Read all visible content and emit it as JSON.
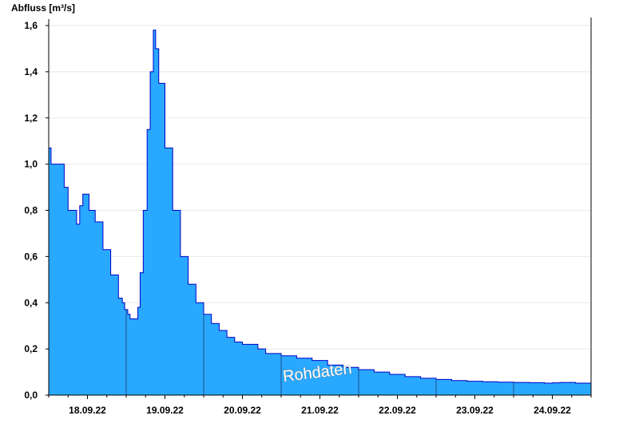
{
  "chart_data": {
    "type": "area",
    "title": "",
    "xlabel": "",
    "ylabel": "Abfluss [m³/s]",
    "watermark": "Rohdaten",
    "ylim": [
      0,
      1.6
    ],
    "yticks": [
      0.0,
      0.2,
      0.4,
      0.6,
      0.8,
      1.0,
      1.2,
      1.4,
      1.6
    ],
    "ytick_labels": [
      "0,0",
      "0,2",
      "0,4",
      "0,6",
      "0,8",
      "1,0",
      "1,2",
      "1,4",
      "1,6"
    ],
    "xlim_days": [
      0,
      7
    ],
    "x_unit": "days from 17.09.22 12:00",
    "xtick_labels": [
      "18.09.22",
      "19.09.22",
      "20.09.22",
      "21.09.22",
      "22.09.22",
      "23.09.22",
      "24.09.22"
    ],
    "grid": true,
    "colors": {
      "fill": "#29a8ff",
      "line": "#0000c8",
      "grid": "#e8e8e8",
      "axis": "#000000",
      "midnight": "#1a4f8a"
    },
    "series": [
      {
        "values": [
          [
            0.0,
            1.07
          ],
          [
            0.03,
            1.0
          ],
          [
            0.15,
            1.0
          ],
          [
            0.2,
            0.9
          ],
          [
            0.25,
            0.8
          ],
          [
            0.33,
            0.8
          ],
          [
            0.36,
            0.74
          ],
          [
            0.4,
            0.82
          ],
          [
            0.44,
            0.87
          ],
          [
            0.5,
            0.87
          ],
          [
            0.52,
            0.8
          ],
          [
            0.6,
            0.75
          ],
          [
            0.7,
            0.63
          ],
          [
            0.8,
            0.52
          ],
          [
            0.9,
            0.42
          ],
          [
            0.95,
            0.4
          ],
          [
            0.98,
            0.37
          ],
          [
            1.02,
            0.35
          ],
          [
            1.05,
            0.33
          ],
          [
            1.12,
            0.33
          ],
          [
            1.15,
            0.38
          ],
          [
            1.18,
            0.53
          ],
          [
            1.22,
            0.8
          ],
          [
            1.27,
            1.15
          ],
          [
            1.31,
            1.4
          ],
          [
            1.35,
            1.58
          ],
          [
            1.38,
            1.5
          ],
          [
            1.42,
            1.35
          ],
          [
            1.5,
            1.07
          ],
          [
            1.6,
            0.8
          ],
          [
            1.7,
            0.6
          ],
          [
            1.8,
            0.48
          ],
          [
            1.9,
            0.4
          ],
          [
            2.0,
            0.35
          ],
          [
            2.1,
            0.31
          ],
          [
            2.2,
            0.28
          ],
          [
            2.3,
            0.25
          ],
          [
            2.4,
            0.23
          ],
          [
            2.5,
            0.22
          ],
          [
            2.6,
            0.22
          ],
          [
            2.7,
            0.2
          ],
          [
            2.8,
            0.18
          ],
          [
            3.0,
            0.17
          ],
          [
            3.2,
            0.16
          ],
          [
            3.4,
            0.15
          ],
          [
            3.6,
            0.13
          ],
          [
            3.8,
            0.12
          ],
          [
            4.0,
            0.11
          ],
          [
            4.2,
            0.1
          ],
          [
            4.4,
            0.09
          ],
          [
            4.6,
            0.08
          ],
          [
            4.8,
            0.073
          ],
          [
            5.0,
            0.068
          ],
          [
            5.2,
            0.063
          ],
          [
            5.4,
            0.06
          ],
          [
            5.6,
            0.058
          ],
          [
            5.8,
            0.056
          ],
          [
            6.0,
            0.055
          ],
          [
            6.2,
            0.054
          ],
          [
            6.4,
            0.052
          ],
          [
            6.5,
            0.053
          ],
          [
            6.6,
            0.055
          ],
          [
            6.8,
            0.052
          ],
          [
            7.0,
            0.05
          ]
        ]
      }
    ]
  }
}
